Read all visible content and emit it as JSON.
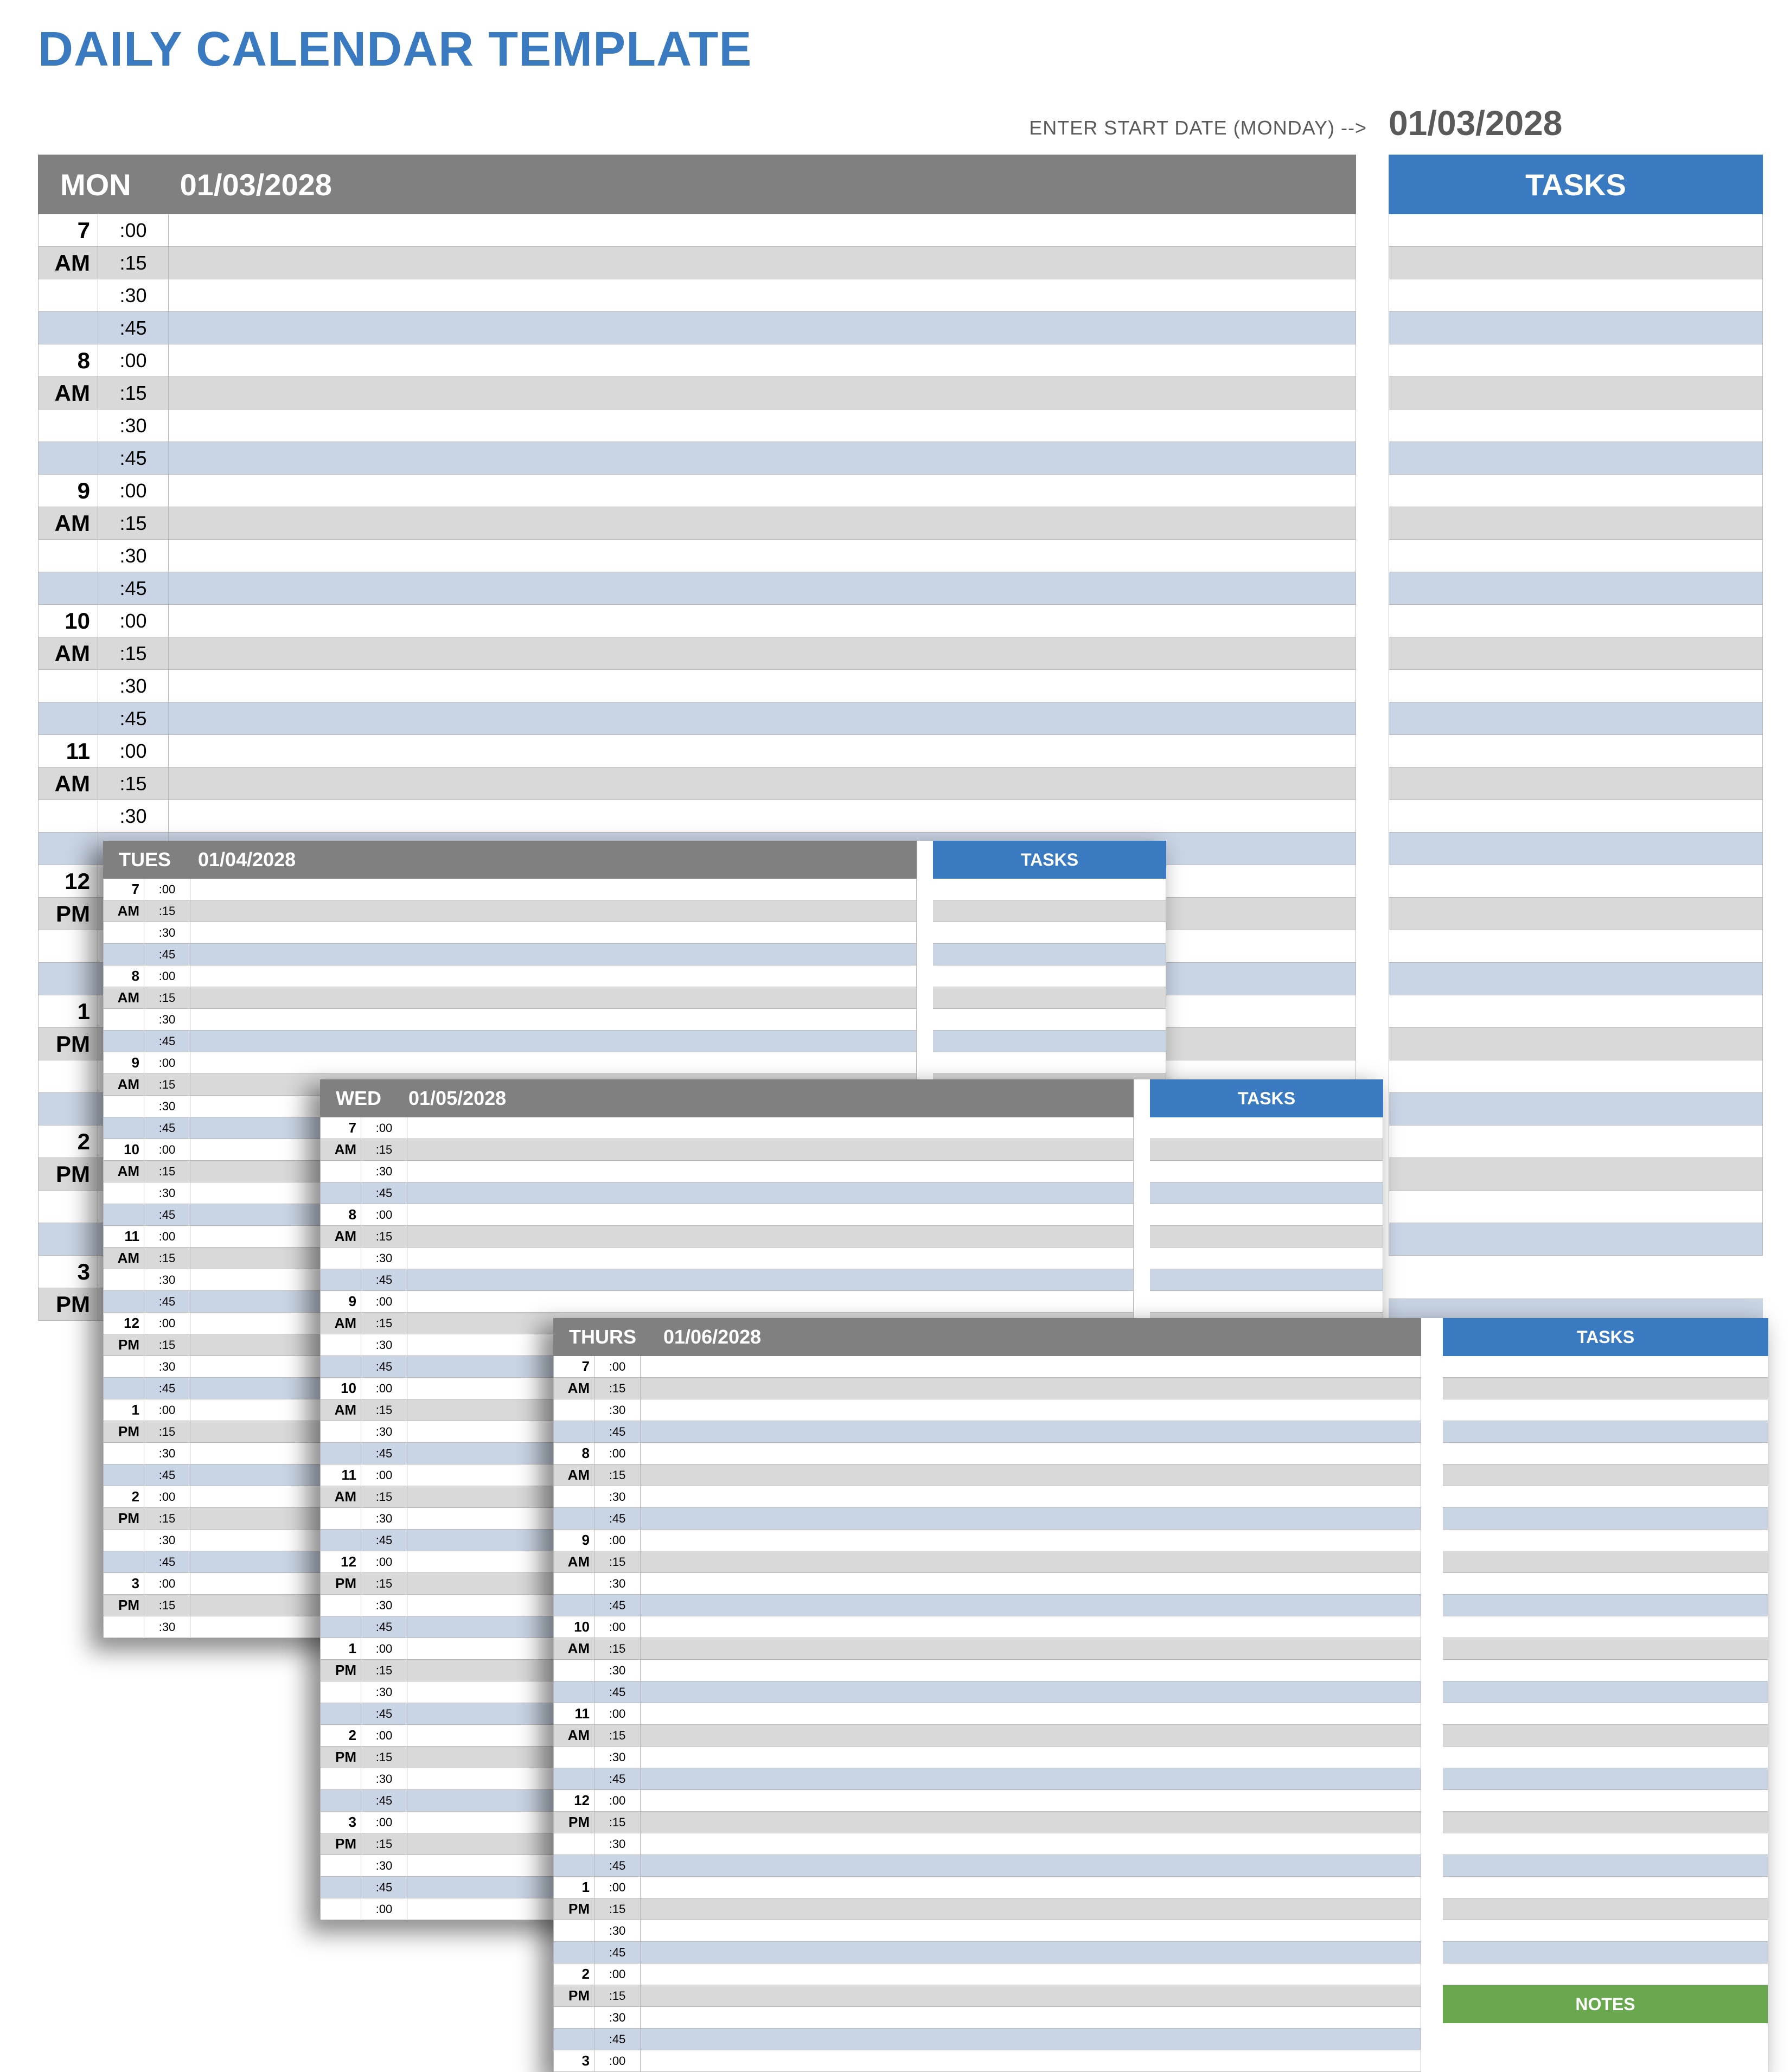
{
  "title": "DAILY CALENDAR TEMPLATE",
  "start_date_label": "ENTER START DATE (MONDAY) -->",
  "start_date_value": "01/03/2028",
  "labels": {
    "tasks": "TASKS",
    "notes": "NOTES"
  },
  "colors": {
    "title": "#3a7ac0",
    "day_header_bg": "#808080",
    "tasks_header_bg": "#3a7ac0",
    "notes_header_bg": "#6aa84f",
    "stripe_white": "#ffffff",
    "stripe_grey": "#d9d9d9",
    "stripe_blue": "#c9d4e4",
    "border": "#b9b9b9"
  },
  "hours": [
    {
      "h": "7",
      "ap": "AM"
    },
    {
      "h": "8",
      "ap": "AM"
    },
    {
      "h": "9",
      "ap": "AM"
    },
    {
      "h": "10",
      "ap": "AM"
    },
    {
      "h": "11",
      "ap": "AM"
    },
    {
      "h": "12",
      "ap": "PM"
    },
    {
      "h": "1",
      "ap": "PM"
    },
    {
      "h": "2",
      "ap": "PM"
    },
    {
      "h": "3",
      "ap": "PM"
    }
  ],
  "minutes": [
    ":00",
    ":15",
    ":30",
    ":45"
  ],
  "mon": {
    "abbr": "MON",
    "date": "01/03/2028",
    "visible_rows": 34,
    "tasks_rows": 32,
    "extra_task_rows": 4
  },
  "tue": {
    "abbr": "TUES",
    "date": "01/04/2028",
    "rows": 35
  },
  "wed": {
    "abbr": "WED",
    "date": "01/05/2028",
    "rows": 37
  },
  "thu": {
    "abbr": "THURS",
    "date": "01/06/2028",
    "rows": 33,
    "tasks_rows": 29
  }
}
